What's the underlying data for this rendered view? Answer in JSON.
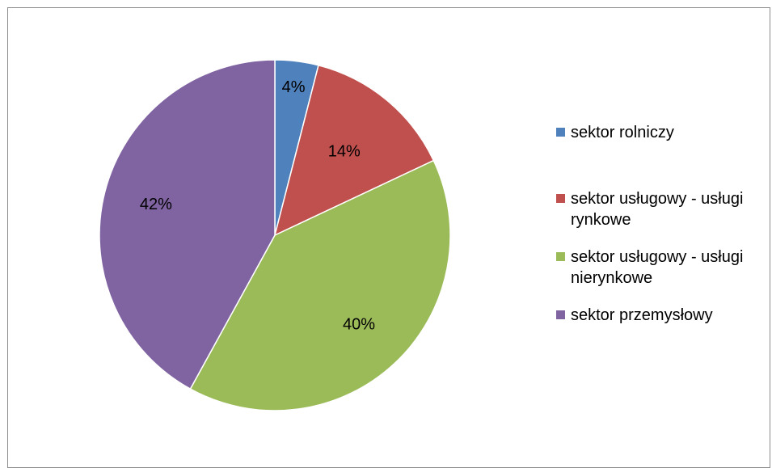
{
  "chart_data": {
    "type": "pie",
    "title": "",
    "categories": [
      "sektor rolniczy",
      "sektor usługowy - usługi rynkowe",
      "sektor usługowy - usługi nierynkowe",
      "sektor przemysłowy"
    ],
    "values": [
      4,
      14,
      40,
      42
    ],
    "data_labels": [
      "4%",
      "14%",
      "40%",
      "42%"
    ],
    "colors": [
      "#4f81bd",
      "#c0504d",
      "#9bbb59",
      "#8064a2"
    ],
    "legend_placement": "right",
    "legend": [
      {
        "lines": [
          "sektor rolniczy"
        ]
      },
      {
        "lines": [
          "sektor usługowy - usługi",
          "rynkowe"
        ]
      },
      {
        "lines": [
          "sektor usługowy - usługi",
          "nierynkowe"
        ]
      },
      {
        "lines": [
          "sektor przemysłowy"
        ]
      }
    ]
  }
}
